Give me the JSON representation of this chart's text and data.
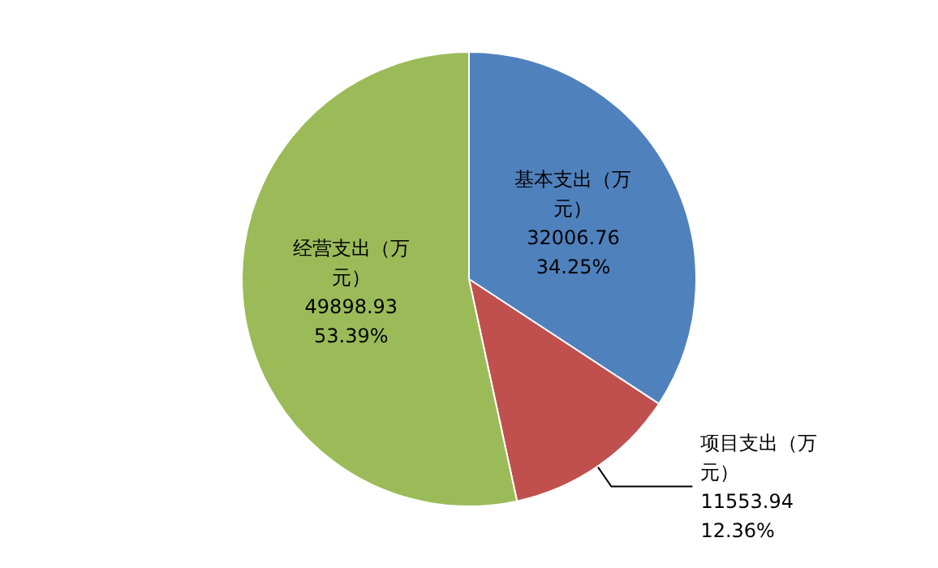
{
  "chart_data": {
    "type": "pie",
    "categories": [
      "基本支出（万元）",
      "项目支出（万元）",
      "经营支出（万元）"
    ],
    "values": [
      32006.76,
      11553.94,
      49898.93
    ],
    "colors": [
      "#4f81bd",
      "#c0504d",
      "#9bbb59"
    ],
    "value_labels": [
      "32006.76\n34.25%",
      "11553.94\n12.36%",
      "49898.93\n53.39%"
    ],
    "legend": false
  }
}
